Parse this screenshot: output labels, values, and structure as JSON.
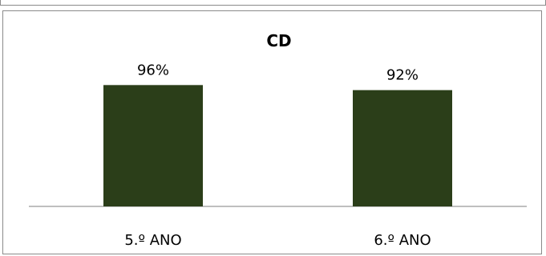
{
  "chart_data": {
    "type": "bar",
    "title": "CD",
    "categories": [
      "5.º ANO",
      "6.º ANO"
    ],
    "values": [
      96,
      92
    ],
    "value_labels": [
      "96%",
      "92%"
    ],
    "ylim": [
      0,
      100
    ],
    "grid": false,
    "legend": "none",
    "bar_color": "#2b3e19",
    "axis_color": "#7f7f7f"
  }
}
